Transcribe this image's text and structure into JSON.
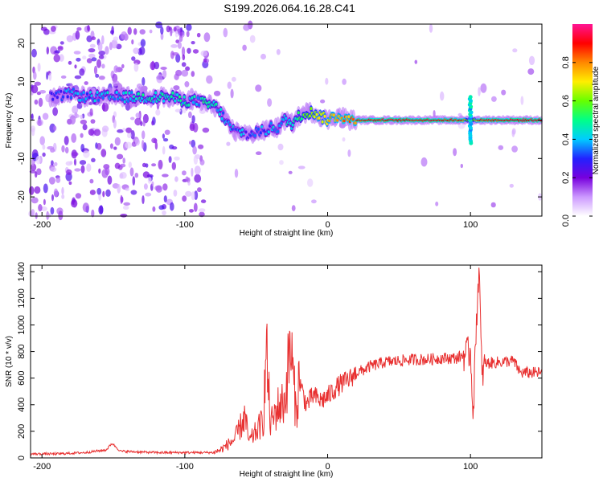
{
  "title": "S199.2026.064.16.28.C41",
  "chart_data": [
    {
      "type": "heatmap",
      "name": "spectrogram",
      "xlabel": "Height of straight line (km)",
      "ylabel": "Frequency (Hz)",
      "xlim": [
        -208,
        150
      ],
      "ylim": [
        -25,
        25
      ],
      "xticks": [
        -200,
        -100,
        0,
        100
      ],
      "yticks": [
        -20,
        -10,
        0,
        10,
        20
      ],
      "colorbar": {
        "label": "Normalized spectral amplitude",
        "range": [
          0,
          1
        ],
        "ticks": [
          0.0,
          0.2,
          0.4,
          0.6,
          0.8
        ],
        "tick_labels": [
          "0.0",
          "0.2",
          "0.4",
          "0.6",
          "0.8"
        ],
        "colors": [
          "#ffffff",
          "#cc99ff",
          "#7700dd",
          "#2222ff",
          "#00ccff",
          "#00ff88",
          "#66ff00",
          "#ffee00",
          "#ff8800",
          "#ff0000",
          "#ff1493"
        ]
      },
      "ridge": {
        "x": [
          -190,
          -180,
          -170,
          -160,
          -150,
          -140,
          -130,
          -120,
          -110,
          -100,
          -90,
          -85,
          -80,
          -75,
          -70,
          -65,
          -60,
          -55,
          -50,
          -45,
          -40,
          -35,
          -30,
          -25,
          -20,
          -15,
          -10,
          -5,
          0,
          5,
          10,
          15,
          20,
          40,
          60,
          80,
          95,
          100,
          105,
          120,
          150
        ],
        "y": [
          6,
          7,
          6,
          6,
          6,
          6,
          6,
          6,
          6,
          5,
          5,
          4,
          4,
          2,
          -1,
          -3,
          -3,
          -4,
          -3,
          -3,
          -2,
          -2,
          0,
          -1,
          1,
          2,
          2,
          1,
          0,
          1,
          1,
          0,
          0,
          0,
          0,
          0,
          0,
          0,
          0,
          0,
          0
        ],
        "amp": [
          0.3,
          0.35,
          0.35,
          0.4,
          0.4,
          0.4,
          0.45,
          0.45,
          0.45,
          0.45,
          0.4,
          0.5,
          0.45,
          0.4,
          0.35,
          0.35,
          0.35,
          0.3,
          0.3,
          0.35,
          0.35,
          0.4,
          0.4,
          0.45,
          0.55,
          0.6,
          0.65,
          0.7,
          0.75,
          0.75,
          0.8,
          0.8,
          0.85,
          0.9,
          0.9,
          0.9,
          0.85,
          0.3,
          0.85,
          0.9,
          0.9
        ]
      }
    },
    {
      "type": "line",
      "name": "snr",
      "xlabel": "Height of straight line (km)",
      "ylabel": "SNR (10 * v/v)",
      "xlim": [
        -208,
        150
      ],
      "ylim": [
        0,
        1450
      ],
      "xticks": [
        -200,
        -100,
        0,
        100
      ],
      "yticks": [
        0,
        200,
        400,
        600,
        800,
        1000,
        1200,
        1400
      ],
      "color": "#e83030",
      "series_points": [
        [
          -208,
          30
        ],
        [
          -190,
          30
        ],
        [
          -170,
          40
        ],
        [
          -155,
          60
        ],
        [
          -151,
          110
        ],
        [
          -145,
          50
        ],
        [
          -120,
          40
        ],
        [
          -100,
          40
        ],
        [
          -80,
          40
        ],
        [
          -75,
          60
        ],
        [
          -70,
          100
        ],
        [
          -65,
          140
        ],
        [
          -60,
          260
        ],
        [
          -58,
          310
        ],
        [
          -55,
          120
        ],
        [
          -50,
          200
        ],
        [
          -45,
          280
        ],
        [
          -43,
          820
        ],
        [
          -40,
          250
        ],
        [
          -35,
          380
        ],
        [
          -30,
          420
        ],
        [
          -26,
          860
        ],
        [
          -22,
          320
        ],
        [
          -20,
          590
        ],
        [
          -15,
          400
        ],
        [
          -10,
          470
        ],
        [
          -5,
          430
        ],
        [
          0,
          460
        ],
        [
          5,
          520
        ],
        [
          10,
          560
        ],
        [
          15,
          590
        ],
        [
          20,
          640
        ],
        [
          25,
          660
        ],
        [
          30,
          690
        ],
        [
          40,
          720
        ],
        [
          50,
          730
        ],
        [
          60,
          740
        ],
        [
          70,
          740
        ],
        [
          80,
          750
        ],
        [
          90,
          750
        ],
        [
          95,
          770
        ],
        [
          100,
          800
        ],
        [
          102,
          330
        ],
        [
          104,
          1000
        ],
        [
          106,
          1440
        ],
        [
          108,
          600
        ],
        [
          110,
          710
        ],
        [
          120,
          720
        ],
        [
          130,
          730
        ],
        [
          135,
          640
        ],
        [
          140,
          640
        ],
        [
          150,
          640
        ]
      ],
      "noise": "high-frequency jitter around the trend"
    }
  ]
}
